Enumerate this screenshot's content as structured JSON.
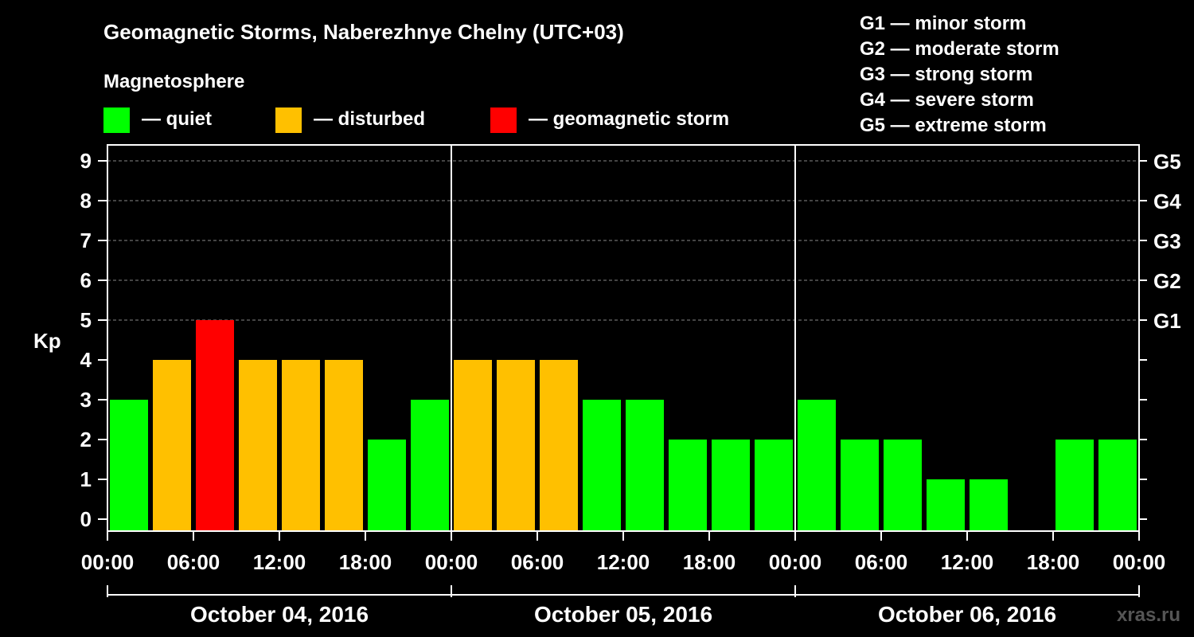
{
  "title": "Geomagnetic Storms, Naberezhnye Chelny (UTC+03)",
  "legend": {
    "heading": "Magnetosphere",
    "items": [
      {
        "label": "— quiet",
        "color": "#00ff00"
      },
      {
        "label": "— disturbed",
        "color": "#ffc000"
      },
      {
        "label": "— geomagnetic storm",
        "color": "#ff0000"
      }
    ]
  },
  "storm_scale": [
    "G1 — minor storm",
    "G2 — moderate storm",
    "G3 — strong storm",
    "G4 — severe storm",
    "G5 — extreme storm"
  ],
  "watermark": "xras.ru",
  "chart_data": {
    "type": "bar",
    "title": "Geomagnetic Storms, Naberezhnye Chelny (UTC+03)",
    "ylabel": "Kp",
    "xlabel": "",
    "ylim": [
      0,
      9
    ],
    "y_ticks": [
      "0",
      "1",
      "2",
      "3",
      "4",
      "5",
      "6",
      "7",
      "8",
      "9"
    ],
    "right_ticks": [
      {
        "kp": 5,
        "label": "G1"
      },
      {
        "kp": 6,
        "label": "G2"
      },
      {
        "kp": 7,
        "label": "G3"
      },
      {
        "kp": 8,
        "label": "G4"
      },
      {
        "kp": 9,
        "label": "G5"
      }
    ],
    "x_tick_labels": [
      "00:00",
      "06:00",
      "12:00",
      "18:00",
      "00:00",
      "06:00",
      "12:00",
      "18:00",
      "00:00",
      "06:00",
      "12:00",
      "18:00",
      "00:00"
    ],
    "days": [
      "October 04, 2016",
      "October 05, 2016",
      "October 06, 2016"
    ],
    "grid": "horizontal dashed at integer Kp 5-9",
    "interval_hours": 3,
    "values": [
      3,
      4,
      5,
      4,
      4,
      4,
      2,
      3,
      4,
      4,
      4,
      3,
      3,
      2,
      2,
      2,
      3,
      2,
      2,
      1,
      1,
      0,
      2,
      2
    ],
    "colors": [
      "#00ff00",
      "#ffc000",
      "#ff0000",
      "#ffc000",
      "#ffc000",
      "#ffc000",
      "#00ff00",
      "#00ff00",
      "#ffc000",
      "#ffc000",
      "#ffc000",
      "#00ff00",
      "#00ff00",
      "#00ff00",
      "#00ff00",
      "#00ff00",
      "#00ff00",
      "#00ff00",
      "#00ff00",
      "#00ff00",
      "#00ff00",
      "#00ff00",
      "#00ff00",
      "#00ff00"
    ]
  }
}
